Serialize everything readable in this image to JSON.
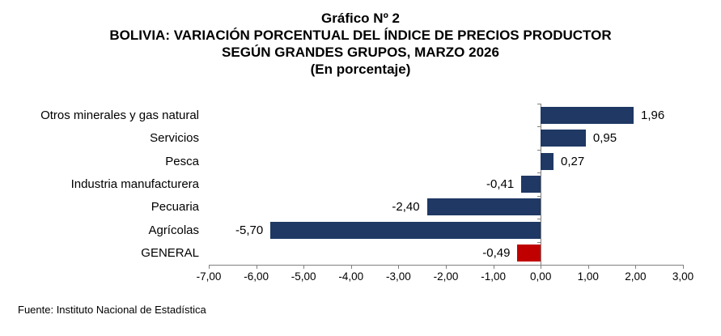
{
  "title": {
    "line1": "Gráfico Nº 2",
    "line2": "BOLIVIA: VARIACIÓN PORCENTUAL DEL ÍNDICE DE PRECIOS PRODUCTOR",
    "line3": "SEGÚN GRANDES GRUPOS, MARZO 2026",
    "line4": "(En porcentaje)"
  },
  "chart_data": {
    "type": "bar",
    "orientation": "horizontal",
    "title": "Gráfico Nº 2 — BOLIVIA: VARIACIÓN PORCENTUAL DEL ÍNDICE DE PRECIOS PRODUCTOR SEGÚN GRANDES GRUPOS, MARZO 2026 (En porcentaje)",
    "categories": [
      "Otros minerales y gas natural",
      "Servicios",
      "Pesca",
      "Industria manufacturera",
      "Pecuaria",
      "Agrícolas",
      "GENERAL"
    ],
    "values": [
      1.96,
      0.95,
      0.27,
      -0.41,
      -2.4,
      -5.7,
      -0.49
    ],
    "value_labels": [
      "1,96",
      "0,95",
      "0,27",
      "-0,41",
      "-2,40",
      "-5,70",
      "-0,49"
    ],
    "bar_colors": [
      "#1F3864",
      "#1F3864",
      "#1F3864",
      "#1F3864",
      "#1F3864",
      "#1F3864",
      "#C00000"
    ],
    "xlim": [
      -7,
      3
    ],
    "x_ticks": [
      -7,
      -6,
      -5,
      -4,
      -3,
      -2,
      -1,
      0,
      1,
      2,
      3
    ],
    "x_tick_labels": [
      "-7,00",
      "-6,00",
      "-5,00",
      "-4,00",
      "-3,00",
      "-2,00",
      "-1,00",
      "0,00",
      "1,00",
      "2,00",
      "3,00"
    ],
    "grid": false,
    "legend": false,
    "xlabel": "",
    "ylabel": ""
  },
  "colors": {
    "bar_primary": "#1F3864",
    "bar_general": "#C00000",
    "axis": "#808080",
    "text": "#000000"
  },
  "footer": {
    "source": "Fuente: Instituto Nacional de Estadística"
  }
}
